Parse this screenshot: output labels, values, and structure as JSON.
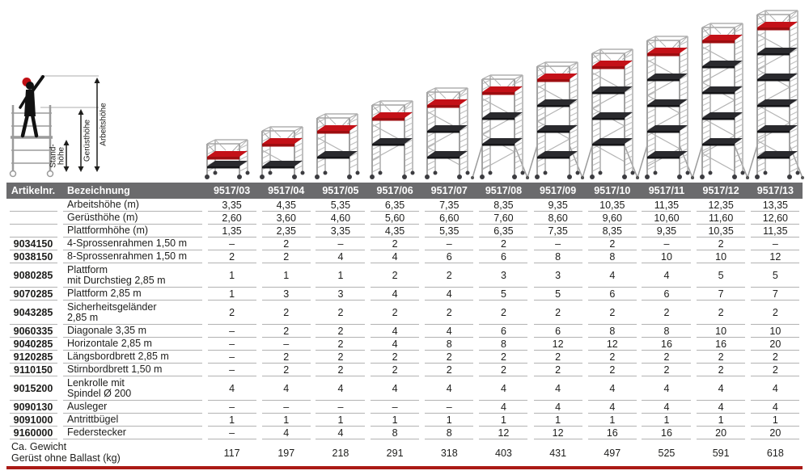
{
  "colors": {
    "header_bg": "#6b6b6d",
    "accent_red_band": "#ab1a15",
    "scaffold_platform_red": "#c41118",
    "separator_gray": "#b2b2b2"
  },
  "pictogram": {
    "arbeitshoehe_label": "Arbeitshöhe",
    "geruesthoehe_label": "Gerüsthöhe",
    "standhoehe_line1": "Stand-",
    "standhoehe_line2": "höhe"
  },
  "table": {
    "header": {
      "artikelnr": "Artikelnr.",
      "bezeichnung": "Bezeichnung",
      "models": [
        "9517/03",
        "9517/04",
        "9517/05",
        "9517/06",
        "9517/07",
        "9517/08",
        "9517/09",
        "9517/10",
        "9517/11",
        "9517/12",
        "9517/13"
      ]
    },
    "rows": [
      {
        "artikelnr": "",
        "bezeichnung": "Arbeitshöhe (m)",
        "values": [
          "3,35",
          "4,35",
          "5,35",
          "6,35",
          "7,35",
          "8,35",
          "9,35",
          "10,35",
          "11,35",
          "12,35",
          "13,35"
        ]
      },
      {
        "artikelnr": "",
        "bezeichnung": "Gerüsthöhe (m)",
        "values": [
          "2,60",
          "3,60",
          "4,60",
          "5,60",
          "6,60",
          "7,60",
          "8,60",
          "9,60",
          "10,60",
          "11,60",
          "12,60"
        ]
      },
      {
        "artikelnr": "",
        "bezeichnung": "Plattformhöhe (m)",
        "values": [
          "1,35",
          "2,35",
          "3,35",
          "4,35",
          "5,35",
          "6,35",
          "7,35",
          "8,35",
          "9,35",
          "10,35",
          "11,35"
        ]
      },
      {
        "artikelnr": "9034150",
        "bezeichnung": "4-Sprossenrahmen 1,50 m",
        "values": [
          "–",
          "2",
          "–",
          "2",
          "–",
          "2",
          "–",
          "2",
          "–",
          "2",
          "–"
        ]
      },
      {
        "artikelnr": "9038150",
        "bezeichnung": "8-Sprossenrahmen 1,50 m",
        "values": [
          "2",
          "2",
          "4",
          "4",
          "6",
          "6",
          "8",
          "8",
          "10",
          "10",
          "12"
        ]
      },
      {
        "artikelnr": "9080285",
        "bezeichnung": "Plattform\nmit Durchstieg 2,85 m",
        "values": [
          "1",
          "1",
          "1",
          "2",
          "2",
          "3",
          "3",
          "4",
          "4",
          "5",
          "5"
        ]
      },
      {
        "artikelnr": "9070285",
        "bezeichnung": "Plattform 2,85 m",
        "values": [
          "1",
          "3",
          "3",
          "4",
          "4",
          "5",
          "5",
          "6",
          "6",
          "7",
          "7"
        ]
      },
      {
        "artikelnr": "9043285",
        "bezeichnung": "Sicherheitsgeländer\n2,85 m",
        "values": [
          "2",
          "2",
          "2",
          "2",
          "2",
          "2",
          "2",
          "2",
          "2",
          "2",
          "2"
        ]
      },
      {
        "artikelnr": "9060335",
        "bezeichnung": "Diagonale 3,35 m",
        "values": [
          "–",
          "2",
          "2",
          "4",
          "4",
          "6",
          "6",
          "8",
          "8",
          "10",
          "10"
        ]
      },
      {
        "artikelnr": "9040285",
        "bezeichnung": "Horizontale 2,85 m",
        "values": [
          "–",
          "–",
          "2",
          "4",
          "8",
          "8",
          "12",
          "12",
          "16",
          "16",
          "20"
        ]
      },
      {
        "artikelnr": "9120285",
        "bezeichnung": "Längsbordbrett 2,85 m",
        "values": [
          "–",
          "2",
          "2",
          "2",
          "2",
          "2",
          "2",
          "2",
          "2",
          "2",
          "2"
        ]
      },
      {
        "artikelnr": "9110150",
        "bezeichnung": "Stirnbordbrett 1,50 m",
        "values": [
          "–",
          "2",
          "2",
          "2",
          "2",
          "2",
          "2",
          "2",
          "2",
          "2",
          "2"
        ]
      },
      {
        "artikelnr": "9015200",
        "bezeichnung": "Lenkrolle mit\nSpindel Ø 200",
        "values": [
          "4",
          "4",
          "4",
          "4",
          "4",
          "4",
          "4",
          "4",
          "4",
          "4",
          "4"
        ]
      },
      {
        "artikelnr": "9090130",
        "bezeichnung": "Ausleger",
        "values": [
          "–",
          "–",
          "–",
          "–",
          "–",
          "4",
          "4",
          "4",
          "4",
          "4",
          "4"
        ]
      },
      {
        "artikelnr": "9091000",
        "bezeichnung": "Antrittbügel",
        "values": [
          "1",
          "1",
          "1",
          "1",
          "1",
          "1",
          "1",
          "1",
          "1",
          "1",
          "1"
        ]
      },
      {
        "artikelnr": "9160000",
        "bezeichnung": "Federstecker",
        "values": [
          "–",
          "4",
          "4",
          "8",
          "8",
          "12",
          "12",
          "16",
          "16",
          "20",
          "20"
        ]
      }
    ],
    "footer": {
      "bezeichnung": "Ca. Gewicht\nGerüst ohne Ballast (kg)",
      "values": [
        "117",
        "197",
        "218",
        "291",
        "318",
        "403",
        "431",
        "497",
        "525",
        "591",
        "618"
      ]
    }
  },
  "towers": [
    {
      "model": "9517/03",
      "geruesthoehe_m": 2.6,
      "ausleger": false
    },
    {
      "model": "9517/04",
      "geruesthoehe_m": 3.6,
      "ausleger": false
    },
    {
      "model": "9517/05",
      "geruesthoehe_m": 4.6,
      "ausleger": false
    },
    {
      "model": "9517/06",
      "geruesthoehe_m": 5.6,
      "ausleger": false
    },
    {
      "model": "9517/07",
      "geruesthoehe_m": 6.6,
      "ausleger": false
    },
    {
      "model": "9517/08",
      "geruesthoehe_m": 7.6,
      "ausleger": true
    },
    {
      "model": "9517/09",
      "geruesthoehe_m": 8.6,
      "ausleger": true
    },
    {
      "model": "9517/10",
      "geruesthoehe_m": 9.6,
      "ausleger": true
    },
    {
      "model": "9517/11",
      "geruesthoehe_m": 10.6,
      "ausleger": true
    },
    {
      "model": "9517/12",
      "geruesthoehe_m": 11.6,
      "ausleger": true
    },
    {
      "model": "9517/13",
      "geruesthoehe_m": 12.6,
      "ausleger": true
    }
  ]
}
